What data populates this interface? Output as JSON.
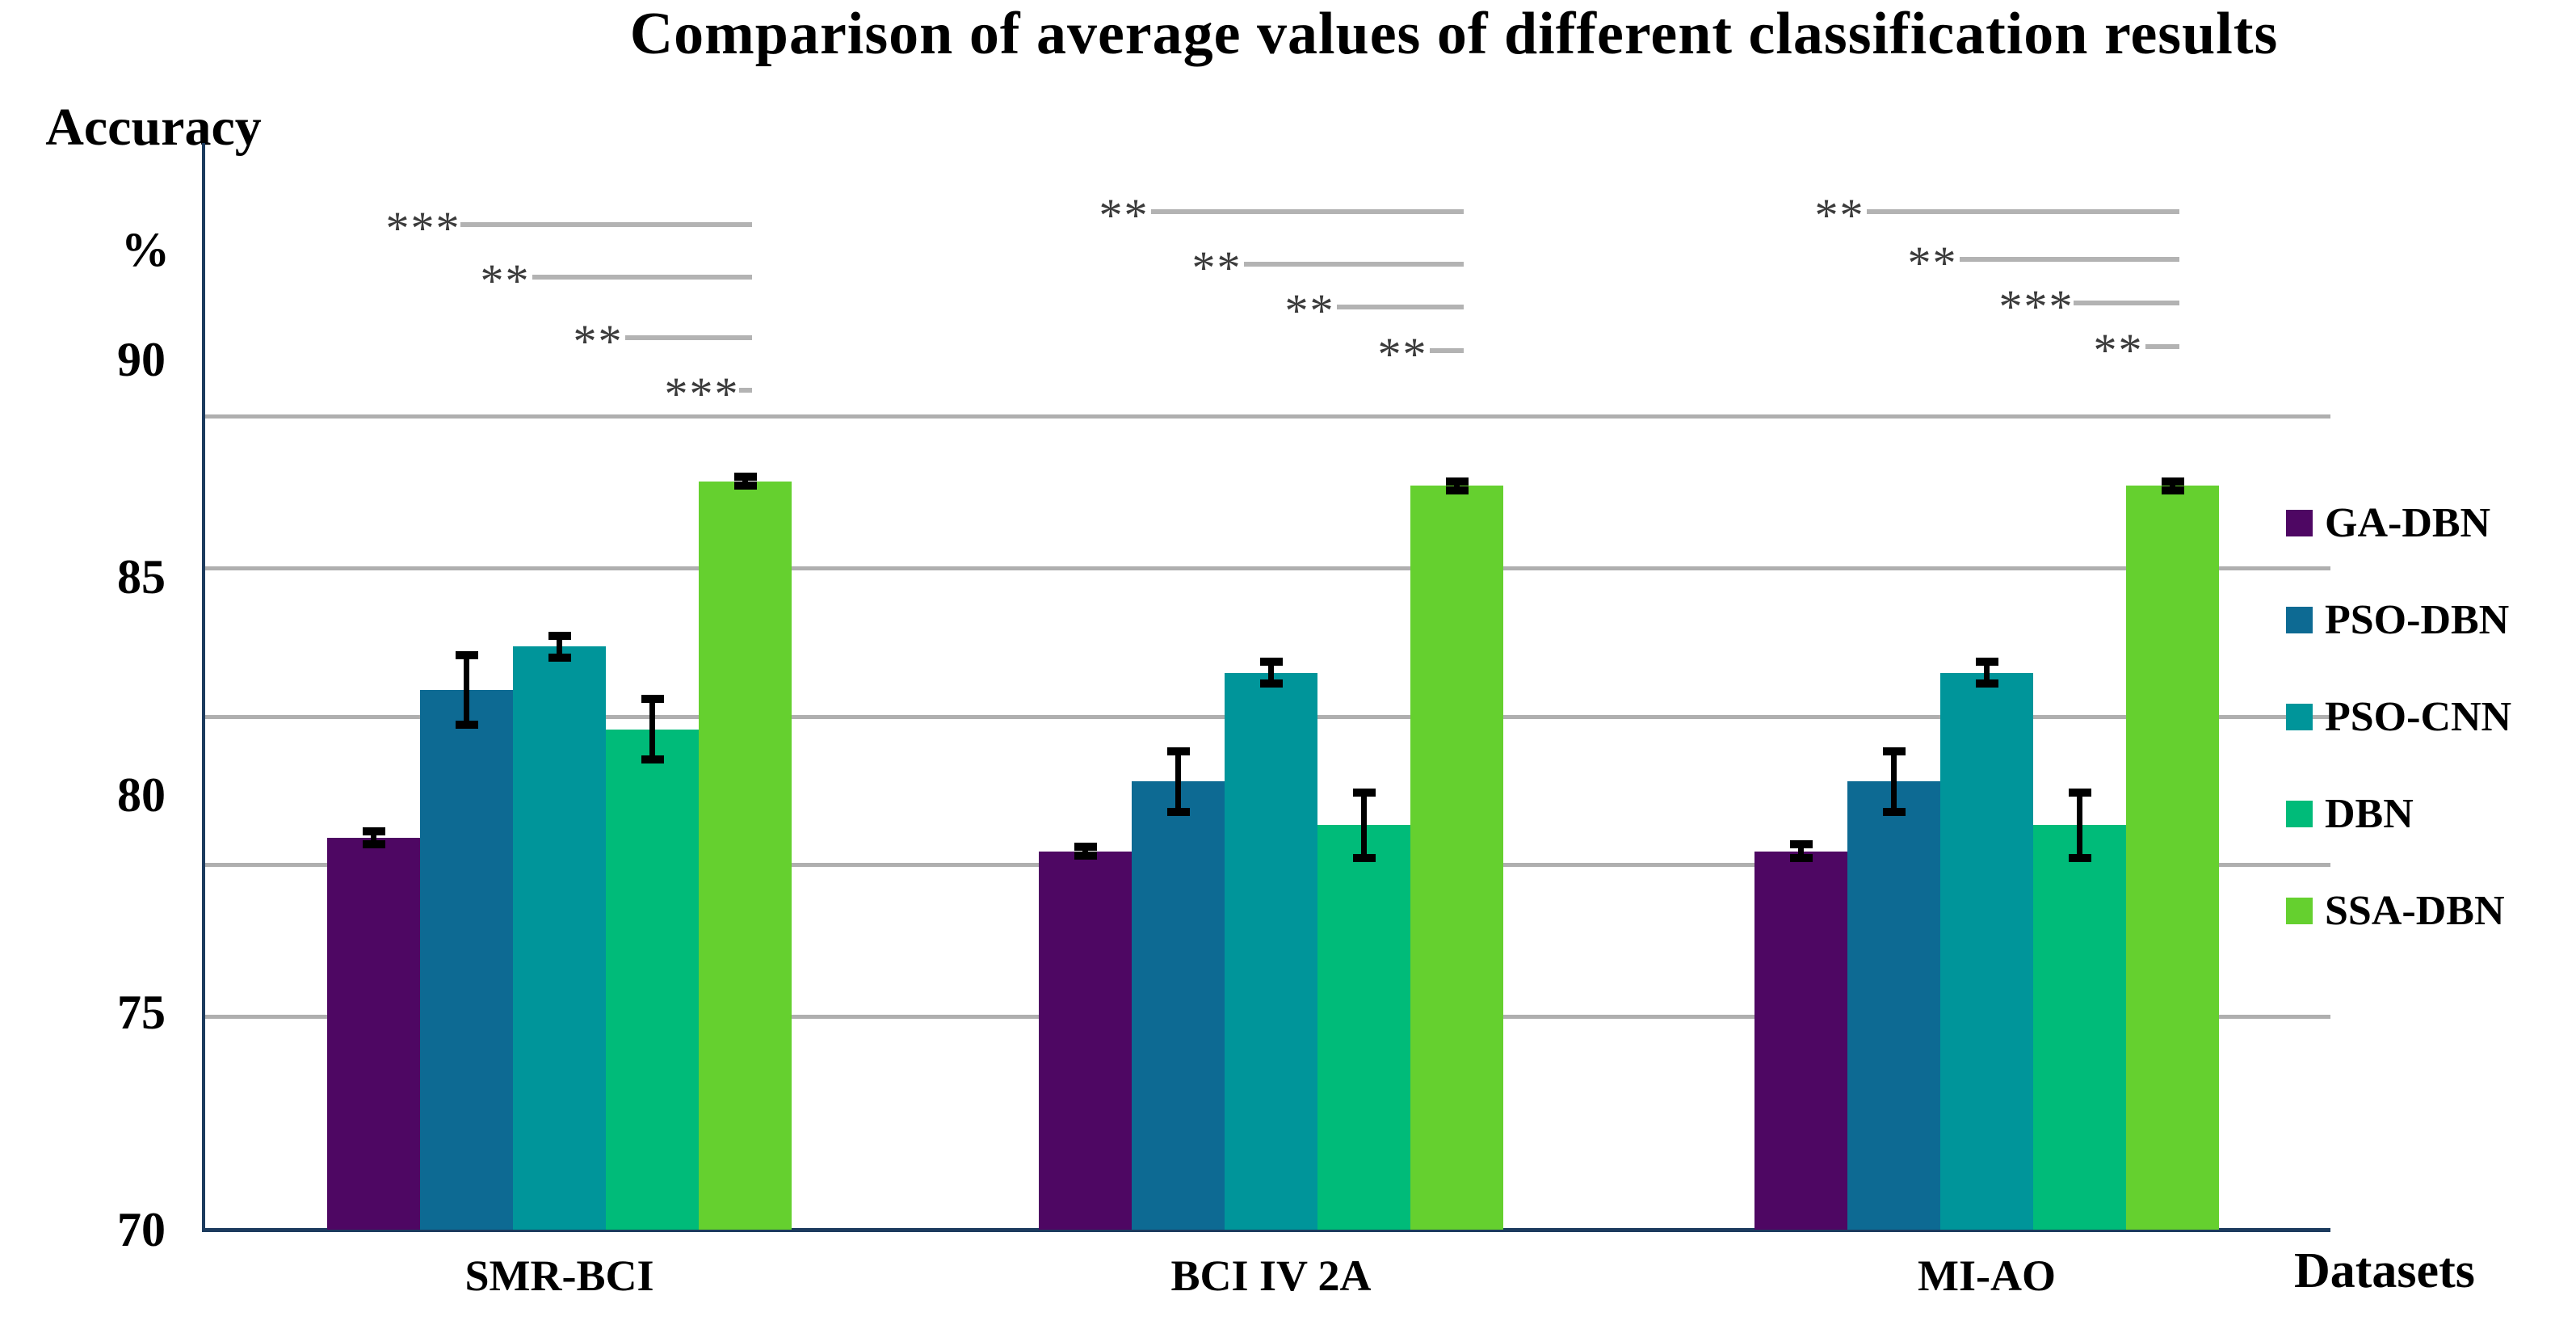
{
  "title": "Comparison of average values of different classification results",
  "y_axis": {
    "title": "Accuracy",
    "unit": "%",
    "ticks": [
      90,
      85,
      80,
      75,
      70
    ],
    "min": 70,
    "max": 95
  },
  "x_axis": {
    "title": "Datasets"
  },
  "colors": {
    "axis": "#1C3B5E",
    "gridline": "#AFAFAF",
    "significance_line": "#B3B3B3",
    "significance_text": "#3B3B3B",
    "error_bar": "#000000",
    "background": "#FFFFFF",
    "text": "#000000"
  },
  "chart_data": {
    "type": "bar",
    "title": "Comparison of average values of different classification results",
    "xlabel": "Datasets",
    "ylabel": "Accuracy %",
    "ylim": [
      70,
      95
    ],
    "grid": true,
    "gridline_values": [
      88.7,
      85.2,
      81.8,
      78.4,
      74.9
    ],
    "legend_position": "right",
    "categories": [
      "SMR-BCI",
      "BCI IV 2A",
      "MI-AO"
    ],
    "series": [
      {
        "name": "GA-DBN",
        "color": "#4E0763",
        "values": [
          79.0,
          78.7,
          78.7
        ],
        "errors": [
          0.15,
          0.1,
          0.15
        ]
      },
      {
        "name": "PSO-DBN",
        "color": "#0D6A93",
        "values": [
          82.4,
          80.3,
          80.3
        ],
        "errors": [
          0.8,
          0.7,
          0.7
        ]
      },
      {
        "name": "PSO-CNN",
        "color": "#00959A",
        "values": [
          83.4,
          82.8,
          82.8
        ],
        "errors": [
          0.25,
          0.25,
          0.25
        ]
      },
      {
        "name": "DBN",
        "color": "#00BB79",
        "values": [
          81.5,
          79.3,
          79.3
        ],
        "errors": [
          0.7,
          0.75,
          0.75
        ]
      },
      {
        "name": "SSA-DBN",
        "color": "#65D02F",
        "values": [
          87.2,
          87.1,
          87.1
        ],
        "errors": [
          0.1,
          0.1,
          0.1
        ]
      }
    ],
    "significance": [
      {
        "category": "SMR-BCI",
        "comparisons": [
          {
            "from": "GA-DBN",
            "to": "SSA-DBN",
            "label": "***",
            "y_value": 93.1
          },
          {
            "from": "PSO-DBN",
            "to": "SSA-DBN",
            "label": "**",
            "y_value": 91.9
          },
          {
            "from": "PSO-CNN",
            "to": "SSA-DBN",
            "label": "**",
            "y_value": 90.5
          },
          {
            "from": "DBN",
            "to": "SSA-DBN",
            "label": "***",
            "y_value": 89.3
          }
        ]
      },
      {
        "category": "BCI IV 2A",
        "comparisons": [
          {
            "from": "GA-DBN",
            "to": "SSA-DBN",
            "label": "**",
            "y_value": 93.4
          },
          {
            "from": "PSO-DBN",
            "to": "SSA-DBN",
            "label": "**",
            "y_value": 92.2
          },
          {
            "from": "PSO-CNN",
            "to": "SSA-DBN",
            "label": "**",
            "y_value": 91.2
          },
          {
            "from": "DBN",
            "to": "SSA-DBN",
            "label": "**",
            "y_value": 90.2
          }
        ]
      },
      {
        "category": "MI-AO",
        "comparisons": [
          {
            "from": "GA-DBN",
            "to": "SSA-DBN",
            "label": "**",
            "y_value": 93.4
          },
          {
            "from": "PSO-DBN",
            "to": "SSA-DBN",
            "label": "**",
            "y_value": 92.3
          },
          {
            "from": "PSO-CNN",
            "to": "SSA-DBN",
            "label": "***",
            "y_value": 91.3
          },
          {
            "from": "DBN",
            "to": "SSA-DBN",
            "label": "**",
            "y_value": 90.3
          }
        ]
      }
    ]
  }
}
